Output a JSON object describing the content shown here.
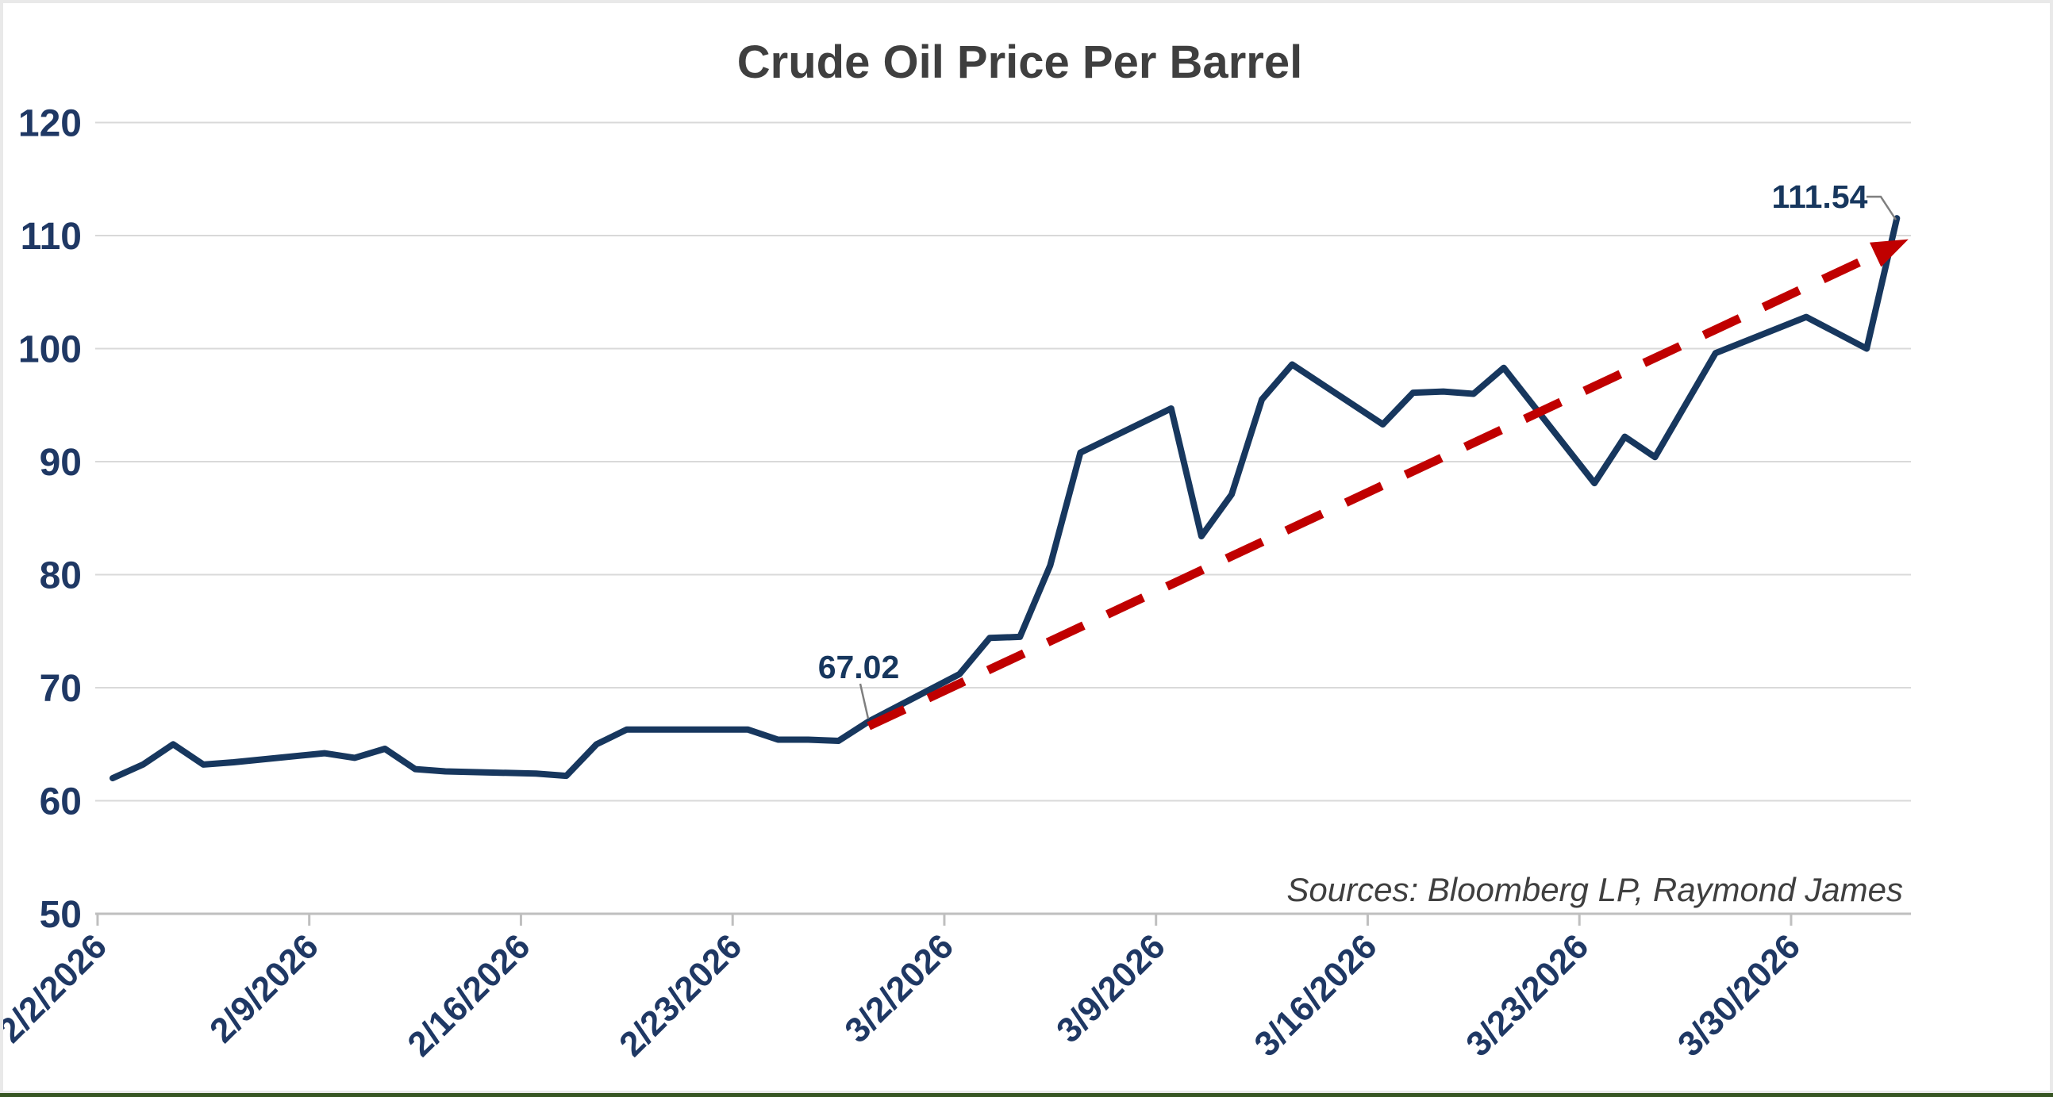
{
  "chart_data": {
    "type": "line",
    "title": "Crude Oil Price Per Barrel",
    "source_note": "Sources: Bloomberg LP, Raymond James",
    "ylim": [
      50,
      120
    ],
    "y_ticks": [
      120,
      110,
      100,
      90,
      80,
      70,
      60,
      50
    ],
    "x_ticks": [
      "2/2/2026",
      "2/9/2026",
      "2/16/2026",
      "2/23/2026",
      "3/2/2026",
      "3/9/2026",
      "3/16/2026",
      "3/23/2026",
      "3/30/2026"
    ],
    "grid": "horizontal",
    "legend": "none",
    "series": [
      {
        "name": "Crude Oil Price Per Barrel (USD)",
        "points": [
          {
            "date": "2/2/2026",
            "value": 62.0
          },
          {
            "date": "2/3/2026",
            "value": 63.2
          },
          {
            "date": "2/4/2026",
            "value": 65.0
          },
          {
            "date": "2/5/2026",
            "value": 63.2
          },
          {
            "date": "2/6/2026",
            "value": 63.4
          },
          {
            "date": "2/9/2026",
            "value": 64.2
          },
          {
            "date": "2/10/2026",
            "value": 63.8
          },
          {
            "date": "2/11/2026",
            "value": 64.6
          },
          {
            "date": "2/12/2026",
            "value": 62.8
          },
          {
            "date": "2/13/2026",
            "value": 62.6
          },
          {
            "date": "2/16/2026",
            "value": 62.4
          },
          {
            "date": "2/17/2026",
            "value": 62.2
          },
          {
            "date": "2/18/2026",
            "value": 65.0
          },
          {
            "date": "2/19/2026",
            "value": 66.3
          },
          {
            "date": "2/20/2026",
            "value": 66.3
          },
          {
            "date": "2/23/2026",
            "value": 66.3
          },
          {
            "date": "2/24/2026",
            "value": 65.4
          },
          {
            "date": "2/25/2026",
            "value": 65.4
          },
          {
            "date": "2/26/2026",
            "value": 65.3
          },
          {
            "date": "2/27/2026",
            "value": 67.02
          },
          {
            "date": "3/2/2026",
            "value": 71.2
          },
          {
            "date": "3/3/2026",
            "value": 74.4
          },
          {
            "date": "3/4/2026",
            "value": 74.5
          },
          {
            "date": "3/5/2026",
            "value": 80.8
          },
          {
            "date": "3/6/2026",
            "value": 90.8
          },
          {
            "date": "3/9/2026",
            "value": 94.7
          },
          {
            "date": "3/10/2026",
            "value": 83.4
          },
          {
            "date": "3/11/2026",
            "value": 87.1
          },
          {
            "date": "3/12/2026",
            "value": 95.5
          },
          {
            "date": "3/13/2026",
            "value": 98.6
          },
          {
            "date": "3/16/2026",
            "value": 93.3
          },
          {
            "date": "3/17/2026",
            "value": 96.1
          },
          {
            "date": "3/18/2026",
            "value": 96.2
          },
          {
            "date": "3/19/2026",
            "value": 96.0
          },
          {
            "date": "3/20/2026",
            "value": 98.3
          },
          {
            "date": "3/23/2026",
            "value": 88.1
          },
          {
            "date": "3/24/2026",
            "value": 92.2
          },
          {
            "date": "3/25/2026",
            "value": 90.4
          },
          {
            "date": "3/26/2026",
            "value": 95.0
          },
          {
            "date": "3/27/2026",
            "value": 99.6
          },
          {
            "date": "3/30/2026",
            "value": 102.8
          },
          {
            "date": "3/31/2026",
            "value": 101.4
          },
          {
            "date": "4/1/2026",
            "value": 100.0
          },
          {
            "date": "4/2/2026",
            "value": 111.54
          }
        ]
      }
    ],
    "annotations": [
      {
        "text": "67.02",
        "date": "2/27/2026",
        "value": 67.02
      },
      {
        "text": "111.54",
        "date": "4/2/2026",
        "value": 111.54
      }
    ],
    "trendline": {
      "style": "dashed-arrow",
      "start": {
        "date": "2/27/2026",
        "value": 66.6
      },
      "end": {
        "date": "4/2/2026",
        "value": 109.2
      }
    },
    "colors": {
      "line": "#17375E",
      "trend": "#C00000",
      "grid": "#D9D9D9",
      "axis": "#BFBFBF",
      "tick_label": "#1F3864",
      "annotation": "#17375E",
      "leader": "#7F7F7F",
      "title": "#3F3F3F",
      "source": "#3F3F3F",
      "background": "#FFFFFF",
      "frame": "#E9E9E9",
      "bottom_strip": "#375623"
    }
  }
}
